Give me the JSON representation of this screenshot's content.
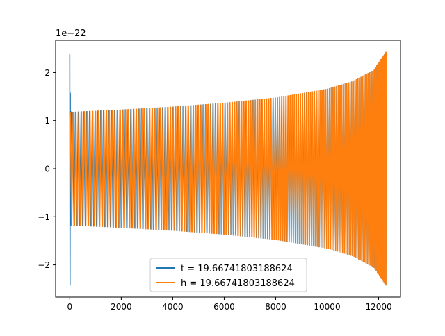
{
  "chart_data": {
    "type": "line",
    "title": "",
    "xlabel": "",
    "ylabel": "",
    "offset_label": "1e−22",
    "xlim": [
      -550,
      12850
    ],
    "ylim": [
      -2.67,
      2.67
    ],
    "x_ticks": [
      0,
      2000,
      4000,
      6000,
      8000,
      10000,
      12000
    ],
    "x_tick_labels": [
      "0",
      "2000",
      "4000",
      "6000",
      "8000",
      "10000",
      "12000"
    ],
    "y_ticks": [
      -2,
      -1,
      0,
      1,
      2
    ],
    "y_tick_labels": [
      "−2",
      "−1",
      "0",
      "1",
      "2"
    ],
    "grid": false,
    "legend_position": "lower-center",
    "series": [
      {
        "name": "t = 19.66741803188624",
        "color": "#1f77b4",
        "x_start": 0,
        "x_end": 12290,
        "initial_spike": {
          "x": [
            0,
            10,
            20,
            35,
            50
          ],
          "y": [
            2.38,
            -2.43,
            1.58,
            -1.15,
            1.18
          ]
        },
        "envelope": {
          "x": [
            0,
            2000,
            4000,
            6000,
            8000,
            10000,
            11000,
            11800,
            12290
          ],
          "y": [
            1.18,
            1.23,
            1.29,
            1.37,
            1.48,
            1.66,
            1.82,
            2.05,
            2.43
          ]
        },
        "cycles": 150
      },
      {
        "name": "h = 19.66741803188624",
        "color": "#ff7f0e",
        "x_start": 20,
        "x_end": 12290,
        "envelope": {
          "x": [
            0,
            2000,
            4000,
            6000,
            8000,
            10000,
            11000,
            11800,
            12290
          ],
          "y": [
            1.18,
            1.23,
            1.29,
            1.37,
            1.48,
            1.66,
            1.82,
            2.05,
            2.43
          ]
        },
        "cycles": 150
      }
    ]
  }
}
